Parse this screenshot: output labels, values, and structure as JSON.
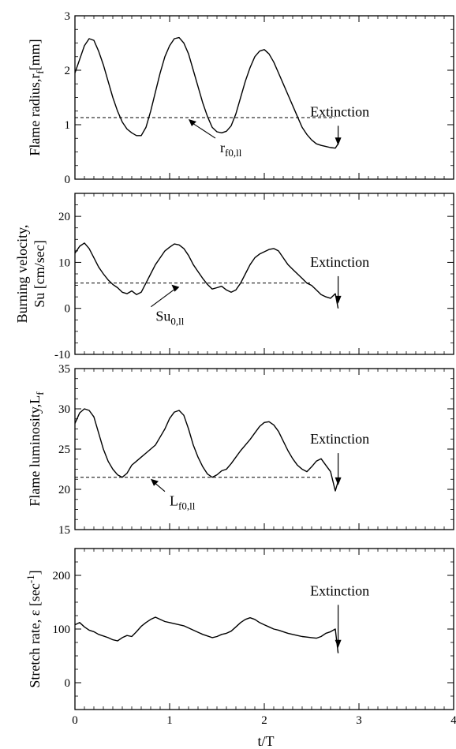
{
  "chart_data": [
    {
      "type": "line",
      "ylabel": "Flame radius,r",
      "ylabel_sub": "f",
      "ylabel_tail": "[mm]",
      "xlim": [
        0,
        4
      ],
      "ylim": [
        0,
        3
      ],
      "yticks": [
        0,
        1,
        2,
        3
      ],
      "series": [
        {
          "x": [
            0,
            0.05,
            0.1,
            0.15,
            0.2,
            0.25,
            0.3,
            0.35,
            0.4,
            0.45,
            0.5,
            0.55,
            0.6,
            0.65,
            0.7,
            0.75,
            0.8,
            0.85,
            0.9,
            0.95,
            1.0,
            1.05,
            1.1,
            1.15,
            1.2,
            1.25,
            1.3,
            1.35,
            1.4,
            1.45,
            1.5,
            1.55,
            1.6,
            1.65,
            1.7,
            1.75,
            1.8,
            1.85,
            1.9,
            1.95,
            2.0,
            2.05,
            2.1,
            2.15,
            2.2,
            2.25,
            2.3,
            2.35,
            2.4,
            2.45,
            2.5,
            2.55,
            2.6,
            2.65,
            2.7,
            2.75,
            2.78
          ],
          "y": [
            1.95,
            2.2,
            2.45,
            2.58,
            2.55,
            2.35,
            2.1,
            1.8,
            1.5,
            1.25,
            1.05,
            0.92,
            0.85,
            0.8,
            0.8,
            0.95,
            1.25,
            1.6,
            1.95,
            2.25,
            2.45,
            2.58,
            2.6,
            2.5,
            2.3,
            2.0,
            1.7,
            1.4,
            1.15,
            0.95,
            0.87,
            0.85,
            0.88,
            0.98,
            1.2,
            1.5,
            1.8,
            2.05,
            2.25,
            2.35,
            2.38,
            2.3,
            2.15,
            1.95,
            1.75,
            1.55,
            1.35,
            1.15,
            0.95,
            0.82,
            0.72,
            0.65,
            0.62,
            0.6,
            0.58,
            0.57,
            0.65
          ]
        }
      ],
      "reference": {
        "y": 1.13,
        "x_end": 2.75,
        "label": "r",
        "label_sub": "f0,ll"
      },
      "annotation": "Extinction",
      "arrow_x": 2.78,
      "arrow_from": 0.98,
      "arrow_to": 0.62
    },
    {
      "type": "line",
      "ylabel": "Burning velocity,",
      "ylabel2": "Su [cm/sec]",
      "xlim": [
        0,
        4
      ],
      "ylim": [
        -10,
        25
      ],
      "yticks": [
        -10,
        0,
        10,
        20
      ],
      "series": [
        {
          "x": [
            0,
            0.05,
            0.1,
            0.15,
            0.2,
            0.25,
            0.3,
            0.35,
            0.4,
            0.45,
            0.5,
            0.55,
            0.6,
            0.65,
            0.7,
            0.75,
            0.8,
            0.85,
            0.9,
            0.95,
            1.0,
            1.05,
            1.1,
            1.15,
            1.2,
            1.25,
            1.3,
            1.35,
            1.4,
            1.45,
            1.5,
            1.55,
            1.6,
            1.65,
            1.7,
            1.75,
            1.8,
            1.85,
            1.9,
            1.95,
            2.0,
            2.05,
            2.1,
            2.15,
            2.2,
            2.25,
            2.3,
            2.35,
            2.4,
            2.45,
            2.5,
            2.55,
            2.6,
            2.65,
            2.7,
            2.75,
            2.78
          ],
          "y": [
            12,
            13.5,
            14.2,
            13,
            11,
            9,
            7.5,
            6.2,
            5.2,
            4.5,
            3.5,
            3.2,
            3.8,
            3,
            3.5,
            5.5,
            7.5,
            9.5,
            11,
            12.5,
            13.3,
            14,
            13.8,
            13,
            11.5,
            9.5,
            8,
            6.5,
            5.2,
            4.2,
            4.5,
            4.8,
            4,
            3.5,
            4,
            5.5,
            7.5,
            9.5,
            11,
            11.8,
            12.3,
            12.8,
            13,
            12.5,
            11,
            9.5,
            8.5,
            7.5,
            6.5,
            5.5,
            5,
            4,
            3,
            2.5,
            2.2,
            3.2,
            0
          ]
        }
      ],
      "reference": {
        "y": 5.5,
        "x_end": 2.5,
        "label": "Su",
        "label_sub": "0,ll"
      },
      "annotation": "Extinction",
      "arrow_x": 2.78,
      "arrow_from": 7,
      "arrow_to": 1
    },
    {
      "type": "line",
      "ylabel": "Flame luminosity,L",
      "ylabel_sub": "f",
      "ylabel_tail": "",
      "xlim": [
        0,
        4
      ],
      "ylim": [
        15,
        35
      ],
      "yticks": [
        15,
        20,
        25,
        30,
        35
      ],
      "series": [
        {
          "x": [
            0,
            0.05,
            0.1,
            0.15,
            0.2,
            0.25,
            0.3,
            0.35,
            0.4,
            0.45,
            0.5,
            0.55,
            0.6,
            0.65,
            0.7,
            0.75,
            0.8,
            0.85,
            0.9,
            0.95,
            1.0,
            1.05,
            1.1,
            1.15,
            1.2,
            1.25,
            1.3,
            1.35,
            1.4,
            1.45,
            1.5,
            1.55,
            1.6,
            1.65,
            1.7,
            1.75,
            1.8,
            1.85,
            1.9,
            1.95,
            2.0,
            2.05,
            2.1,
            2.15,
            2.2,
            2.25,
            2.3,
            2.35,
            2.4,
            2.45,
            2.5,
            2.55,
            2.6,
            2.65,
            2.7,
            2.75,
            2.78
          ],
          "y": [
            28.2,
            29.5,
            30,
            29.8,
            29,
            27,
            25,
            23.5,
            22.5,
            21.8,
            21.5,
            22,
            23,
            23.5,
            24,
            24.5,
            25,
            25.5,
            26.5,
            27.5,
            28.8,
            29.6,
            29.8,
            29.2,
            27.5,
            25.5,
            24,
            22.8,
            21.9,
            21.5,
            21.8,
            22.3,
            22.5,
            23.2,
            24,
            24.8,
            25.5,
            26.2,
            27,
            27.8,
            28.3,
            28.4,
            28,
            27.2,
            26,
            24.8,
            23.8,
            23,
            22.5,
            22.2,
            22.8,
            23.5,
            23.8,
            23,
            22.2,
            19.8,
            21
          ]
        }
      ],
      "reference": {
        "y": 21.5,
        "x_end": 2.6,
        "label": "L",
        "label_sub": "f0,ll"
      },
      "annotation": "Extinction",
      "arrow_x": 2.78,
      "arrow_from": 24.5,
      "arrow_to": 20.5
    },
    {
      "type": "line",
      "ylabel": "Stretch rate, ε [sec",
      "ylabel_sup": "-1",
      "ylabel_tail": "]",
      "xlabel": "t/T",
      "xlim": [
        0,
        4
      ],
      "ylim": [
        -50,
        250
      ],
      "yticks": [
        0,
        100,
        200
      ],
      "xticks": [
        0,
        1,
        2,
        3,
        4
      ],
      "series": [
        {
          "x": [
            0,
            0.05,
            0.1,
            0.15,
            0.2,
            0.25,
            0.3,
            0.35,
            0.4,
            0.45,
            0.5,
            0.55,
            0.6,
            0.65,
            0.7,
            0.75,
            0.8,
            0.85,
            0.9,
            0.95,
            1.0,
            1.05,
            1.1,
            1.15,
            1.2,
            1.25,
            1.3,
            1.35,
            1.4,
            1.45,
            1.5,
            1.55,
            1.6,
            1.65,
            1.7,
            1.75,
            1.8,
            1.85,
            1.9,
            1.95,
            2.0,
            2.05,
            2.1,
            2.15,
            2.2,
            2.25,
            2.3,
            2.35,
            2.4,
            2.45,
            2.5,
            2.55,
            2.6,
            2.65,
            2.7,
            2.75,
            2.78
          ],
          "y": [
            108,
            112,
            104,
            98,
            95,
            90,
            87,
            84,
            80,
            78,
            84,
            88,
            86,
            95,
            105,
            112,
            118,
            122,
            118,
            114,
            112,
            110,
            108,
            106,
            102,
            98,
            94,
            90,
            87,
            84,
            86,
            90,
            92,
            96,
            104,
            112,
            118,
            121,
            118,
            112,
            108,
            104,
            100,
            98,
            95,
            92,
            90,
            88,
            86,
            85,
            84,
            83,
            86,
            92,
            95,
            100,
            55
          ]
        }
      ],
      "annotation": "Extinction",
      "arrow_x": 2.78,
      "arrow_from": 145,
      "arrow_to": 65
    }
  ]
}
